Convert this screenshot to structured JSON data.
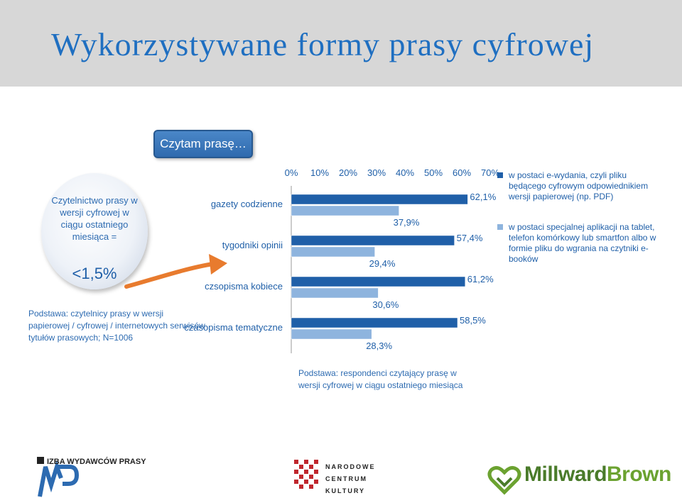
{
  "title": "Wykorzystywane formy prasy cyfrowej",
  "header_button": "Czytam prasę…",
  "readership": {
    "text": "Czytelnictwo prasy w wersji cyfrowej w ciągu ostatniego miesiąca =",
    "value": "<1,5%"
  },
  "basis_left": "Podstawa: czytelnicy prasy w wersji papierowej / cyfrowej / internetowych serwisów tytułów prasowych; N=1006",
  "basis_bottom": "Podstawa: respondenci czytający prasę w wersji cyfrowej w ciągu ostatniego miesiąca",
  "logos": {
    "izba": "IZBA WYDAWCÓW PRASY",
    "nck_lines": [
      "NARODOWE",
      "CENTRUM",
      "KULTURY"
    ],
    "mb_part1": "Millward",
    "mb_part2": "Brown"
  },
  "colors": {
    "dark_blue": "#1f5fa8",
    "light_blue": "#8eb4de",
    "title_blue": "#1f6fc1",
    "arrow": "#e87b2e"
  },
  "chart_data": {
    "type": "bar",
    "orientation": "horizontal",
    "categories": [
      "gazety codzienne",
      "tygodniki opinii",
      "czsopisma kobiece",
      "czasopisma tematyczne"
    ],
    "series": [
      {
        "name": "w postaci e-wydania, czyli pliku będącego cyfrowym odpowiednikiem wersji papierowej (np. PDF)",
        "values": [
          62.1,
          57.4,
          61.2,
          58.5
        ],
        "labels": [
          "62,1%",
          "57,4%",
          "61,2%",
          "58,5%"
        ],
        "color": "#1f5fa8"
      },
      {
        "name": "w postaci specjalnej aplikacji na tablet, telefon komórkowy lub smartfon albo w formie pliku do wgrania na czytniki e-booków",
        "values": [
          37.9,
          29.4,
          30.6,
          28.3
        ],
        "labels": [
          "37,9%",
          "29,4%",
          "30,6%",
          "28,3%"
        ],
        "color": "#8eb4de"
      }
    ],
    "x_ticks": [
      "0%",
      "10%",
      "20%",
      "30%",
      "40%",
      "50%",
      "60%",
      "70%"
    ],
    "xlim": [
      0,
      70
    ],
    "legend_position": "right",
    "grid": false
  }
}
